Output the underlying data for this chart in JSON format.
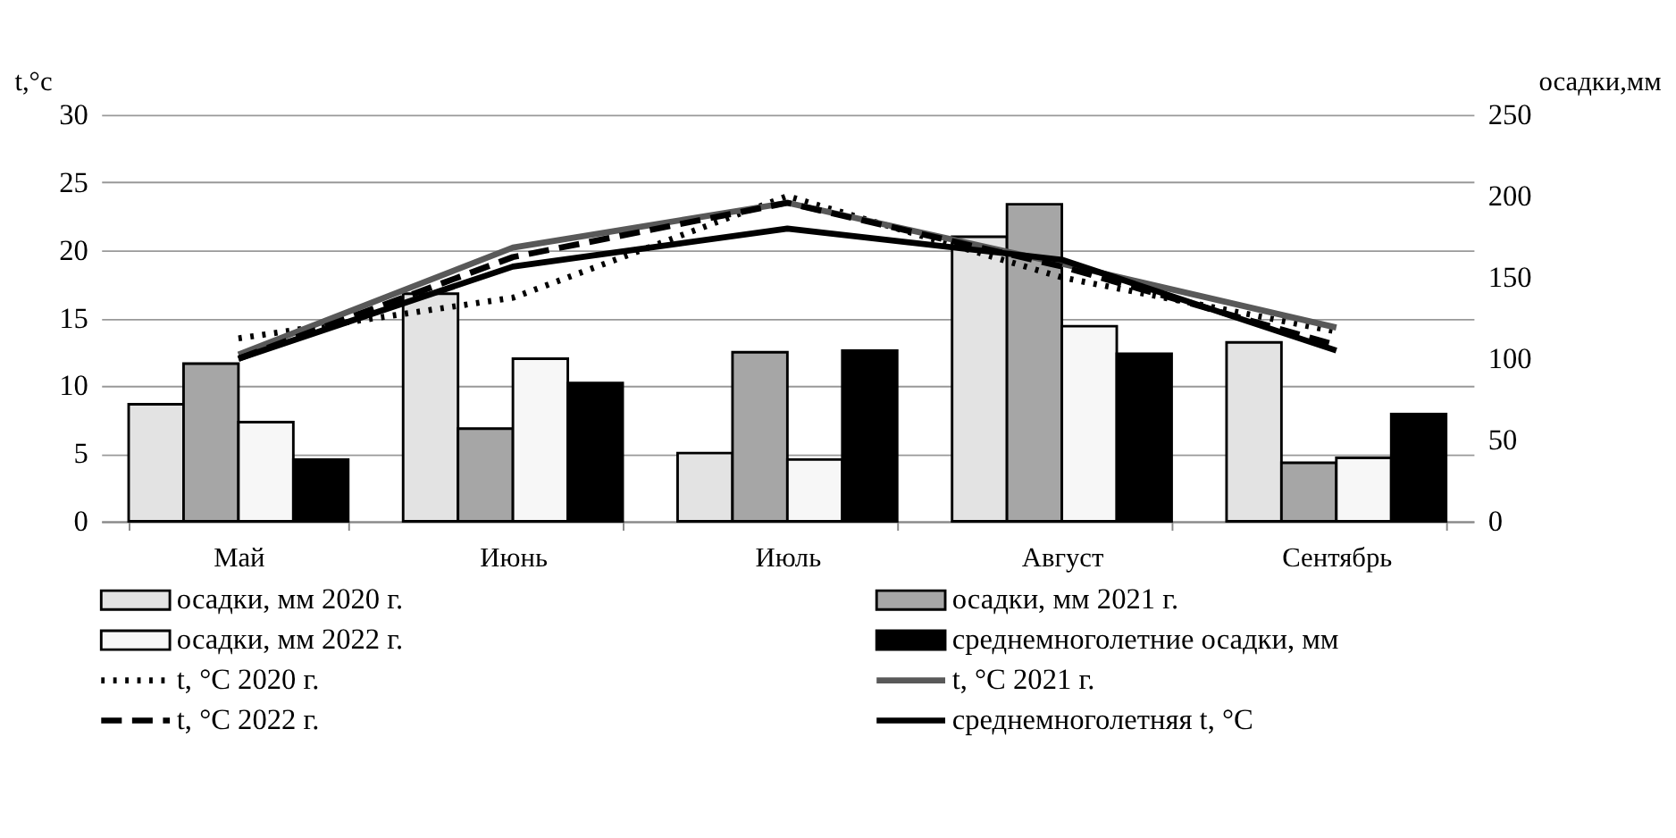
{
  "chart_data": {
    "type": "bar",
    "ylabel": "t,°с",
    "y2label": "осадки,мм",
    "categories": [
      "Май",
      "Июнь",
      "Июль",
      "Август",
      "Сентябрь"
    ],
    "series": [
      {
        "name": "осадки, мм 2020 г.",
        "type": "bar",
        "axis": "y2",
        "color": "#e3e3e3",
        "values": [
          72,
          140,
          42,
          175,
          110
        ]
      },
      {
        "name": "осадки, мм 2021 г.",
        "type": "bar",
        "axis": "y2",
        "color": "#a6a6a6",
        "values": [
          97,
          57,
          104,
          195,
          36
        ]
      },
      {
        "name": "осадки, мм 2022 г.",
        "type": "bar",
        "axis": "y2",
        "color": "#f7f7f7",
        "values": [
          61,
          100,
          38,
          120,
          39
        ]
      },
      {
        "name": "среднемноголетние осадки, мм",
        "type": "bar",
        "axis": "y2",
        "color": "#000000",
        "values": [
          38,
          85,
          105,
          103,
          66
        ]
      },
      {
        "name": "t, °С 2020 г.",
        "type": "line",
        "axis": "y",
        "color": "#000000",
        "line_style": "dotted",
        "values": [
          13.5,
          16.5,
          24,
          18,
          14
        ]
      },
      {
        "name": "t, °С 2021 г.",
        "type": "line",
        "axis": "y",
        "color": "#595959",
        "line_style": "solid",
        "values": [
          12.3,
          20.2,
          23.5,
          19,
          14.3
        ]
      },
      {
        "name": "t, °С 2022 г.",
        "type": "line",
        "axis": "y",
        "color": "#000000",
        "line_style": "dashed",
        "values": [
          12,
          19.5,
          23.5,
          18.8,
          13
        ]
      },
      {
        "name": "среднемноголетняя t, °С",
        "type": "line",
        "axis": "y",
        "color": "#000000",
        "line_style": "solid",
        "values": [
          12,
          18.8,
          21.6,
          19.3,
          12.6
        ]
      }
    ],
    "ylim": [
      0,
      30
    ],
    "yticks": [
      0,
      5,
      10,
      15,
      20,
      25,
      30
    ],
    "y2lim": [
      0,
      250
    ],
    "y2ticks": [
      0,
      50,
      100,
      150,
      200,
      250
    ],
    "grid": "y",
    "legend": "bottom"
  }
}
